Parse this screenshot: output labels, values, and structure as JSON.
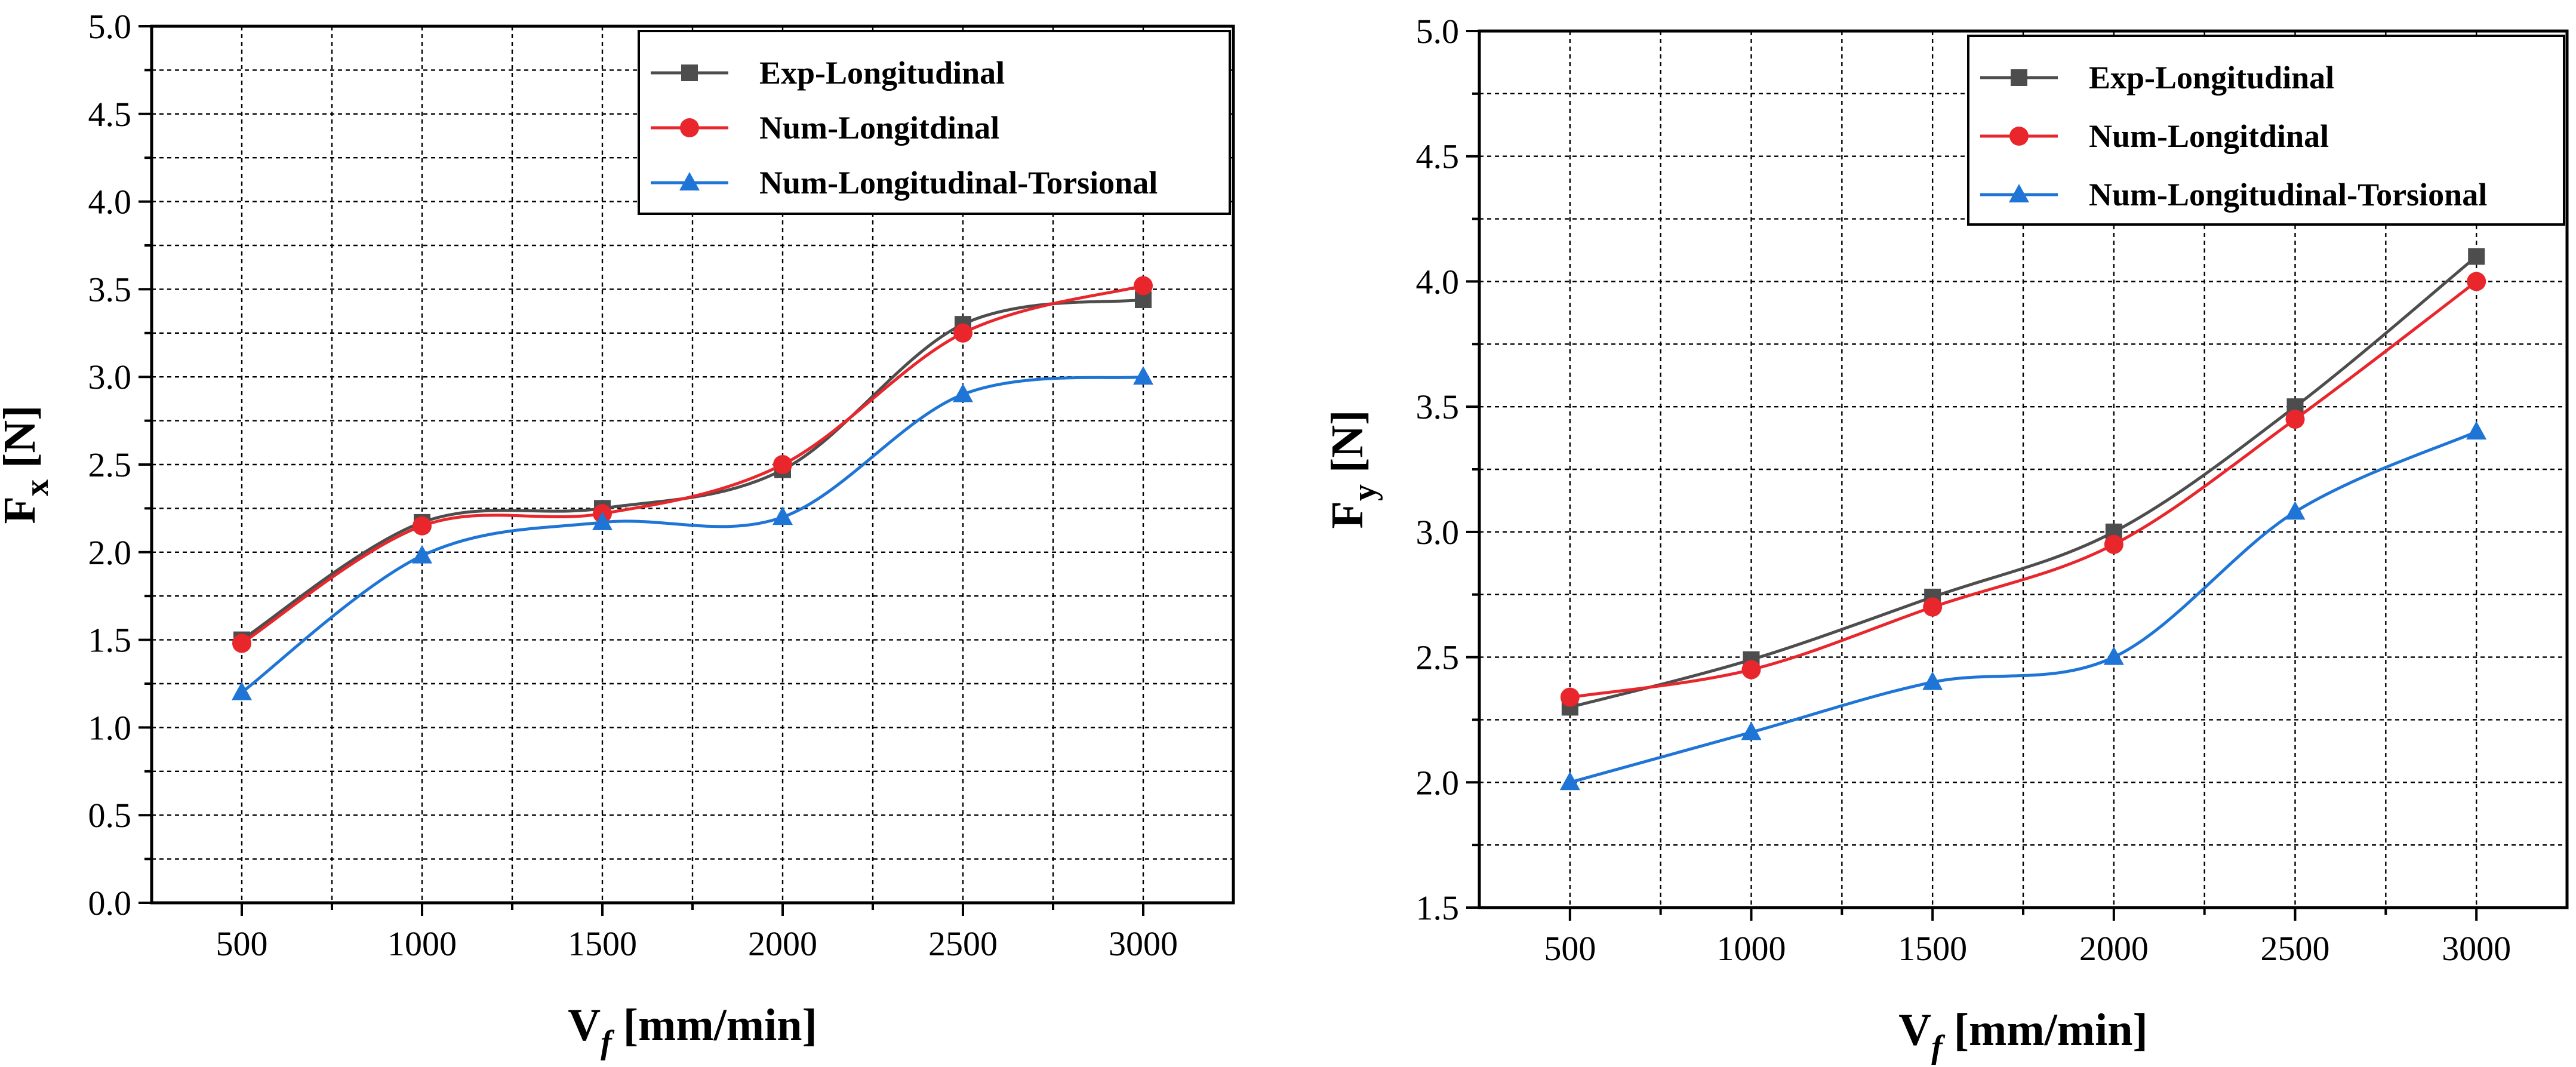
{
  "chart_data": [
    {
      "type": "line",
      "title": "",
      "xlabel": "V",
      "xlabel_sub": "f",
      "xlabel_unit": " [mm/min]",
      "ylabel": "F",
      "ylabel_sub": "x",
      "ylabel_unit": " [N]",
      "xlim": [
        250,
        3250
      ],
      "ylim": [
        0.0,
        5.0
      ],
      "x_ticks": [
        500,
        1000,
        1500,
        2000,
        2500,
        3000
      ],
      "x_tick_labels": [
        "500",
        "1000",
        "1500",
        "2000",
        "2500",
        "3000"
      ],
      "y_ticks": [
        0.0,
        0.5,
        1.0,
        1.5,
        2.0,
        2.5,
        3.0,
        3.5,
        4.0,
        4.5,
        5.0
      ],
      "y_tick_labels": [
        "0.0",
        "0.5",
        "1.0",
        "1.5",
        "2.0",
        "2.5",
        "3.0",
        "3.5",
        "4.0",
        "4.5",
        "5.0"
      ],
      "grid": true,
      "legend_position": "top-right",
      "x": [
        500,
        1000,
        1500,
        2000,
        2500,
        3000
      ],
      "series": [
        {
          "name": "Exp-Longitudinal",
          "marker": "square",
          "color": "#4d4d4d",
          "values": [
            1.5,
            2.17,
            2.25,
            2.47,
            3.3,
            3.44
          ]
        },
        {
          "name": "Num-Longitdinal",
          "marker": "circle",
          "color": "#e8262b",
          "values": [
            1.48,
            2.15,
            2.22,
            2.5,
            3.25,
            3.52
          ]
        },
        {
          "name": "Num-Longitudinal-Torsional",
          "marker": "triangle",
          "color": "#1f75d6",
          "values": [
            1.2,
            1.98,
            2.17,
            2.2,
            2.9,
            3.0
          ]
        }
      ]
    },
    {
      "type": "line",
      "title": "",
      "xlabel": "V",
      "xlabel_sub": "f",
      "xlabel_unit": " [mm/min]",
      "ylabel": "F",
      "ylabel_sub": "y",
      "ylabel_unit": " [N]",
      "xlim": [
        250,
        3250
      ],
      "ylim": [
        1.5,
        5.0
      ],
      "x_ticks": [
        500,
        1000,
        1500,
        2000,
        2500,
        3000
      ],
      "x_tick_labels": [
        "500",
        "1000",
        "1500",
        "2000",
        "2500",
        "3000"
      ],
      "y_ticks": [
        1.5,
        2.0,
        2.5,
        3.0,
        3.5,
        4.0,
        4.5,
        5.0
      ],
      "y_tick_labels": [
        "1.5",
        "2.0",
        "2.5",
        "3.0",
        "3.5",
        "4.0",
        "4.5",
        "5.0"
      ],
      "grid": true,
      "legend_position": "top-right",
      "x": [
        500,
        1000,
        1500,
        2000,
        2500,
        3000
      ],
      "series": [
        {
          "name": "Exp-Longitudinal",
          "marker": "square",
          "color": "#4d4d4d",
          "values": [
            2.3,
            2.49,
            2.74,
            3.0,
            3.5,
            4.1
          ]
        },
        {
          "name": "Num-Longitdinal",
          "marker": "circle",
          "color": "#e8262b",
          "values": [
            2.34,
            2.45,
            2.7,
            2.95,
            3.45,
            4.0
          ]
        },
        {
          "name": "Num-Longitudinal-Torsional",
          "marker": "triangle",
          "color": "#1f75d6",
          "values": [
            2.0,
            2.2,
            2.4,
            2.5,
            3.08,
            3.4
          ]
        }
      ]
    }
  ]
}
